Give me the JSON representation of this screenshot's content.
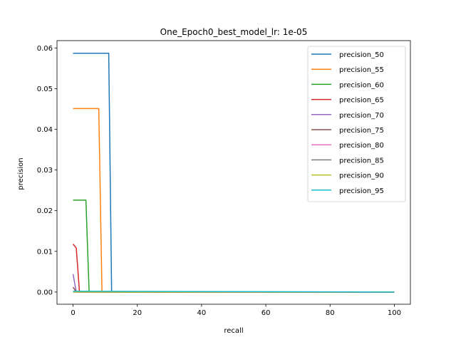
{
  "chart_data": {
    "type": "line",
    "title": "One_Epoch0_best_model_lr: 1e-05",
    "xlabel": "recall",
    "ylabel": "precision",
    "xlim": [
      -5,
      105
    ],
    "ylim": [
      -0.003,
      0.0618
    ],
    "xticks": [
      0,
      20,
      40,
      60,
      80,
      100
    ],
    "yticks": [
      0.0,
      0.01,
      0.02,
      0.03,
      0.04,
      0.05,
      0.06
    ],
    "xtick_labels": [
      "0",
      "20",
      "40",
      "60",
      "80",
      "100"
    ],
    "ytick_labels": [
      "0.00",
      "0.01",
      "0.02",
      "0.03",
      "0.04",
      "0.05",
      "0.06"
    ],
    "grid": false,
    "legend_position": "top-right",
    "series": [
      {
        "name": "precision_50",
        "color": "#1f77b4",
        "x": [
          0,
          11,
          11.1,
          12,
          100
        ],
        "y": [
          0.0587,
          0.0587,
          0.0587,
          0.0,
          0.0
        ]
      },
      {
        "name": "precision_55",
        "color": "#ff7f0e",
        "x": [
          0,
          8,
          9,
          100
        ],
        "y": [
          0.0451,
          0.0451,
          0.0,
          0.0
        ]
      },
      {
        "name": "precision_60",
        "color": "#2ca02c",
        "x": [
          0,
          4,
          5,
          100
        ],
        "y": [
          0.0226,
          0.0226,
          0.0,
          0.0
        ]
      },
      {
        "name": "precision_65",
        "color": "#d62728",
        "x": [
          0,
          1,
          2,
          100
        ],
        "y": [
          0.0118,
          0.0108,
          0.0,
          0.0
        ]
      },
      {
        "name": "precision_70",
        "color": "#9467bd",
        "x": [
          0,
          1,
          100
        ],
        "y": [
          0.0044,
          0.0,
          0.0
        ]
      },
      {
        "name": "precision_75",
        "color": "#8c564b",
        "x": [
          0,
          1,
          100
        ],
        "y": [
          0.0012,
          0.0,
          0.0
        ]
      },
      {
        "name": "precision_80",
        "color": "#e377c2",
        "x": [
          0,
          100
        ],
        "y": [
          0.0,
          0.0
        ]
      },
      {
        "name": "precision_85",
        "color": "#7f7f7f",
        "x": [
          0,
          100
        ],
        "y": [
          0.0,
          0.0
        ]
      },
      {
        "name": "precision_90",
        "color": "#bcbd22",
        "x": [
          0,
          100
        ],
        "y": [
          0.0,
          0.0
        ]
      },
      {
        "name": "precision_95",
        "color": "#17becf",
        "x": [
          0,
          100
        ],
        "y": [
          0.0002,
          0.0
        ]
      }
    ]
  }
}
